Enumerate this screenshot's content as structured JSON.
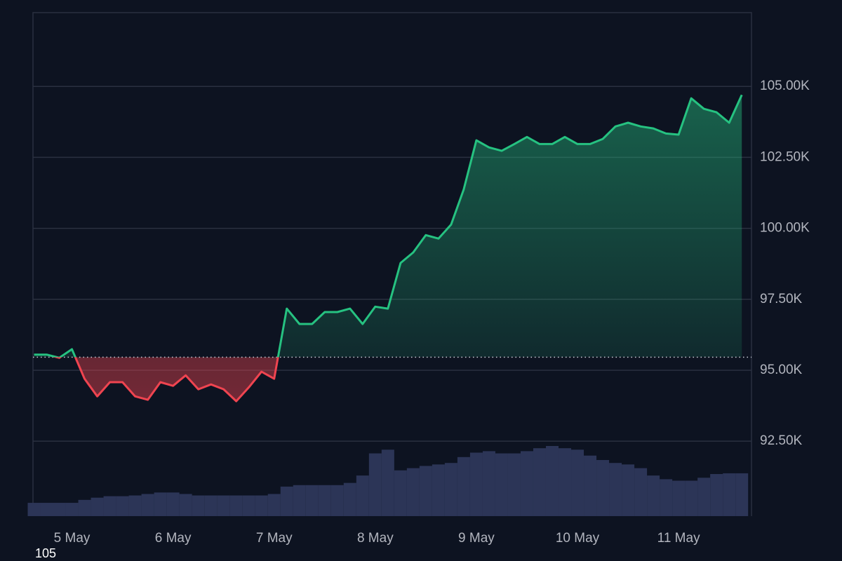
{
  "chart_data": {
    "type": "baseline-area",
    "categories": [
      null,
      null,
      null,
      "5 May",
      null,
      null,
      null,
      null,
      null,
      null,
      null,
      "6 May",
      null,
      null,
      null,
      null,
      null,
      null,
      null,
      "7 May",
      null,
      null,
      null,
      null,
      null,
      null,
      null,
      "8 May",
      null,
      null,
      null,
      null,
      null,
      null,
      null,
      "9 May",
      null,
      null,
      null,
      null,
      null,
      null,
      null,
      "10 May",
      null,
      null,
      null,
      null,
      null,
      null,
      null,
      "11 May",
      null,
      null,
      null,
      null,
      null
    ],
    "values": [
      95550,
      95550,
      95440,
      95740,
      94700,
      94080,
      94580,
      94580,
      94080,
      93960,
      94580,
      94450,
      94820,
      94330,
      94500,
      94330,
      93910,
      94400,
      94950,
      94700,
      97170,
      96630,
      96630,
      97050,
      97050,
      97170,
      96630,
      97240,
      97170,
      98780,
      99150,
      99760,
      99640,
      100130,
      101370,
      103100,
      102850,
      102730,
      102970,
      103220,
      102970,
      102970,
      103220,
      102970,
      102970,
      103150,
      103590,
      103720,
      103590,
      103520,
      103340,
      103300,
      104580,
      104210,
      104090,
      103720,
      104700
    ],
    "volume": [
      18,
      18,
      18,
      18,
      22,
      25,
      27,
      27,
      28,
      30,
      32,
      32,
      30,
      28,
      28,
      28,
      28,
      28,
      28,
      30,
      40,
      42,
      42,
      42,
      42,
      45,
      55,
      85,
      90,
      62,
      65,
      68,
      70,
      72,
      80,
      86,
      88,
      85,
      85,
      88,
      92,
      95,
      92,
      90,
      82,
      76,
      72,
      70,
      65,
      55,
      50,
      48,
      48,
      52,
      57,
      58,
      58
    ],
    "baseline": 95460,
    "up_color": "#26c281",
    "down_color": "#ef4450",
    "volume_color": "#2c3557",
    "ylim": [
      89860,
      107600
    ],
    "yticks": [
      {
        "value": 92500,
        "label": "92.50K"
      },
      {
        "value": 95000,
        "label": "95.00K"
      },
      {
        "value": 97500,
        "label": "97.50K"
      },
      {
        "value": 100000,
        "label": "100.00K"
      },
      {
        "value": 102500,
        "label": "102.50K"
      },
      {
        "value": 105000,
        "label": "105.00K"
      }
    ],
    "grid": true,
    "corner_label": "105"
  }
}
